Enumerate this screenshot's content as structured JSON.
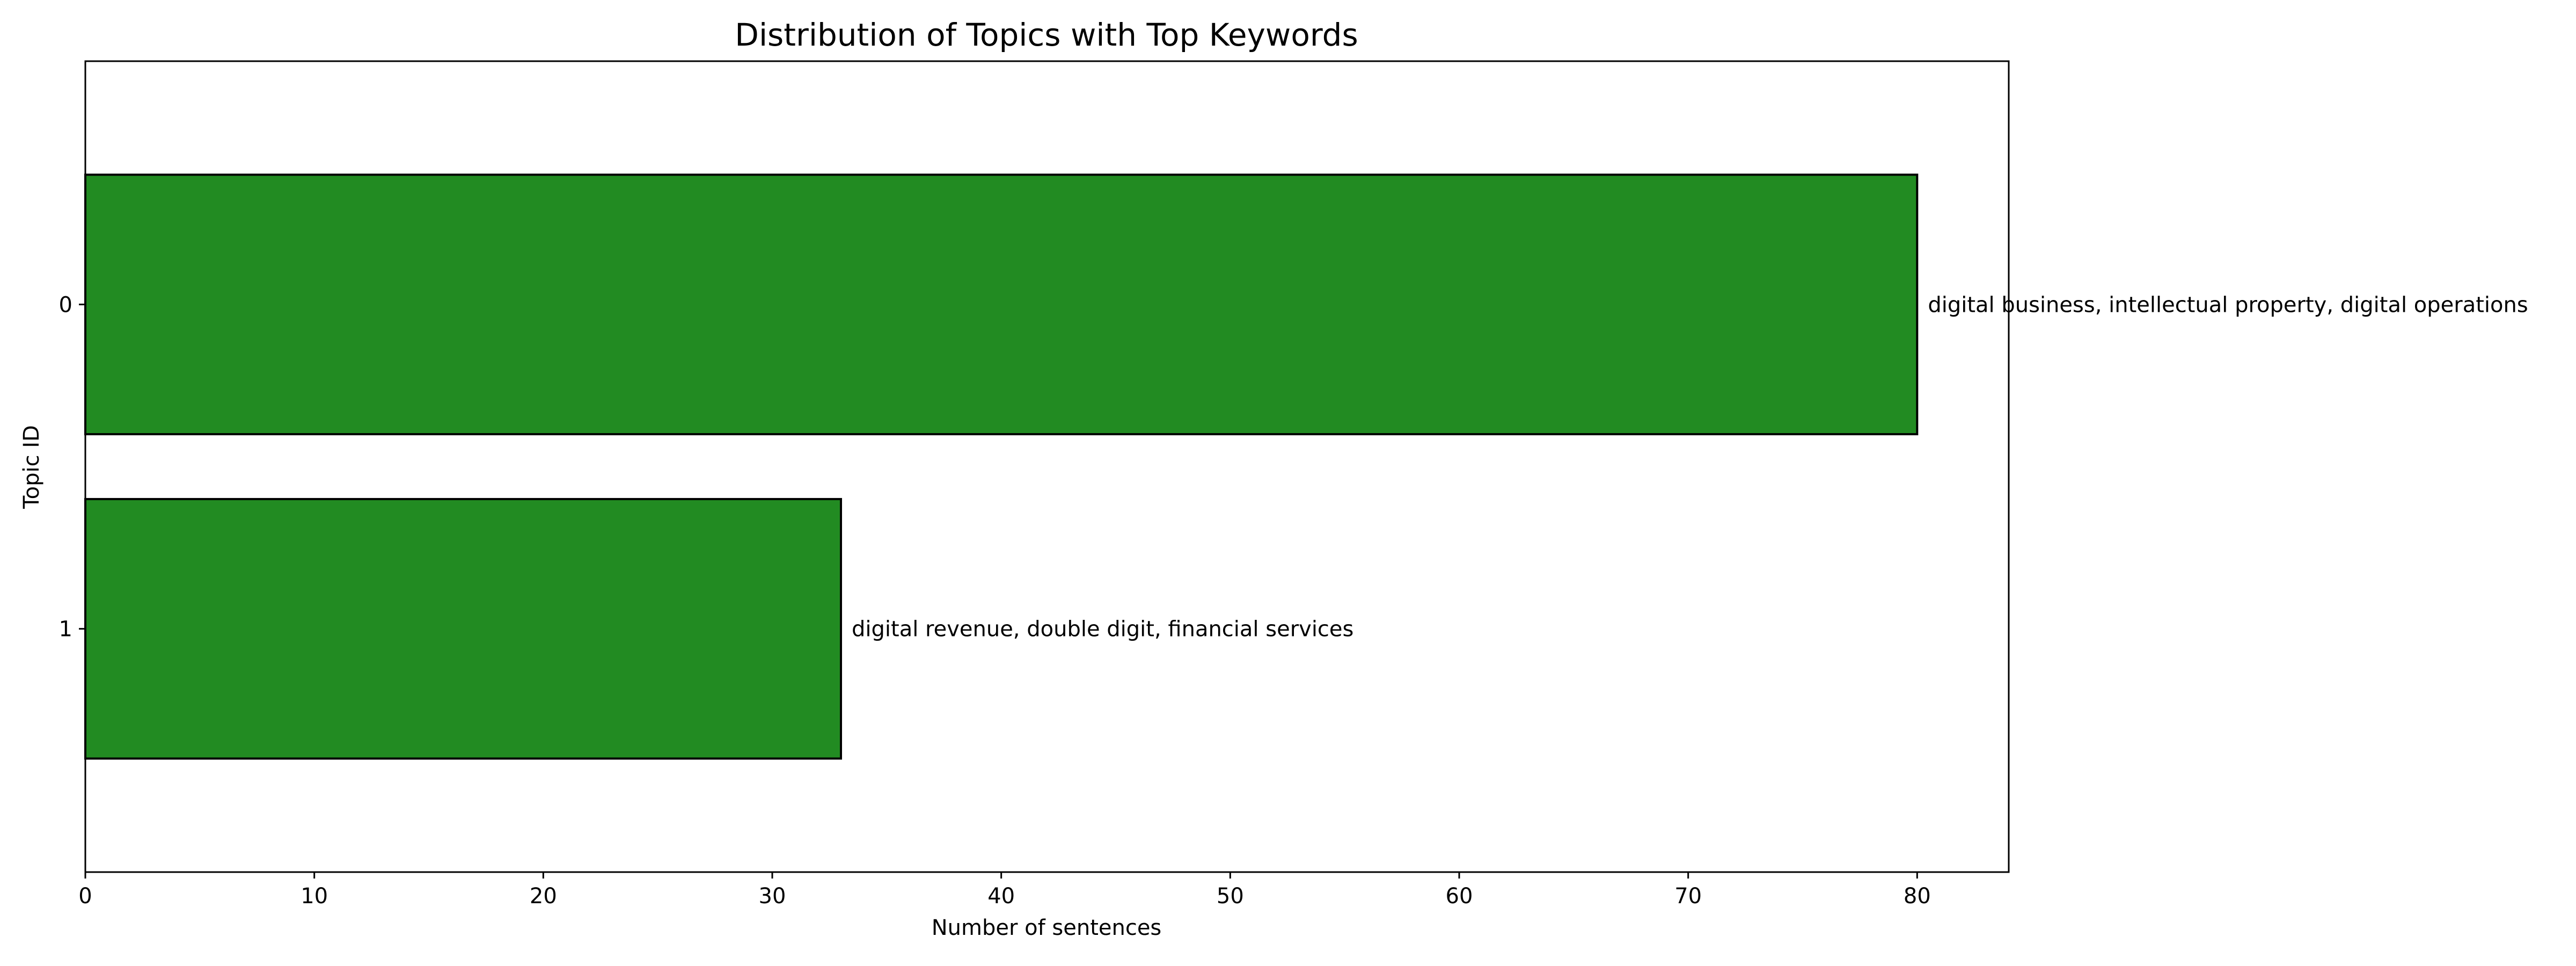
{
  "chart_data": {
    "type": "bar",
    "orientation": "horizontal",
    "title": "Distribution of Topics with Top Keywords",
    "xlabel": "Number of sentences",
    "ylabel": "Topic ID",
    "categories": [
      "0",
      "1"
    ],
    "values": [
      80,
      33
    ],
    "annotations": [
      "digital business, intellectual property, digital operations",
      "digital revenue, double digit, financial services"
    ],
    "xlim": [
      0,
      84
    ],
    "xticks": [
      0,
      10,
      20,
      30,
      40,
      50,
      60,
      70,
      80
    ],
    "grid": false,
    "legend": "none",
    "bar_color": "#228b22",
    "edge_color": "#000000"
  }
}
